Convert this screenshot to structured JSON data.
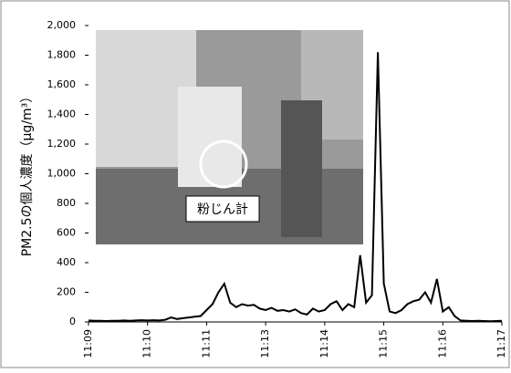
{
  "chart_data": {
    "type": "line",
    "y_label": "PM2.5の個人濃度（μg/m³）",
    "annotation": "粉じん計",
    "categories": [
      "11:09",
      null,
      null,
      null,
      null,
      null,
      null,
      null,
      null,
      null,
      "11:10",
      null,
      null,
      null,
      null,
      null,
      null,
      null,
      null,
      null,
      "11:11",
      null,
      null,
      null,
      null,
      null,
      null,
      null,
      null,
      null,
      "11:13",
      null,
      null,
      null,
      null,
      null,
      null,
      null,
      null,
      null,
      "11:14",
      null,
      null,
      null,
      null,
      null,
      null,
      null,
      null,
      null,
      "11:15",
      null,
      null,
      null,
      null,
      null,
      null,
      null,
      null,
      null,
      "11:16",
      null,
      null,
      null,
      null,
      null,
      null,
      null,
      null,
      null,
      "11:17"
    ],
    "series": [
      {
        "name": "PM2.5",
        "color": "#000000",
        "values": [
          10,
          8,
          8,
          6,
          8,
          8,
          10,
          8,
          10,
          12,
          10,
          12,
          10,
          15,
          30,
          20,
          25,
          30,
          35,
          40,
          80,
          120,
          200,
          258,
          130,
          100,
          120,
          110,
          115,
          90,
          80,
          95,
          75,
          80,
          70,
          85,
          60,
          50,
          90,
          70,
          80,
          120,
          140,
          80,
          120,
          100,
          450,
          130,
          180,
          1820,
          260,
          70,
          60,
          80,
          120,
          140,
          150,
          200,
          130,
          290,
          70,
          100,
          40,
          10,
          8,
          6,
          8,
          6,
          5,
          6,
          8
        ]
      }
    ],
    "ylim": [
      0,
      2000
    ],
    "yticks": [
      0,
      200,
      400,
      600,
      800,
      {
        "value": 1000,
        "label": "1,000"
      },
      {
        "value": 1200,
        "label": "1,200"
      },
      {
        "value": 1400,
        "label": "1,400"
      },
      {
        "value": 1600,
        "label": "1,600"
      },
      {
        "value": 1800,
        "label": "1,800"
      },
      {
        "value": 2000,
        "label": "2,000"
      }
    ]
  }
}
